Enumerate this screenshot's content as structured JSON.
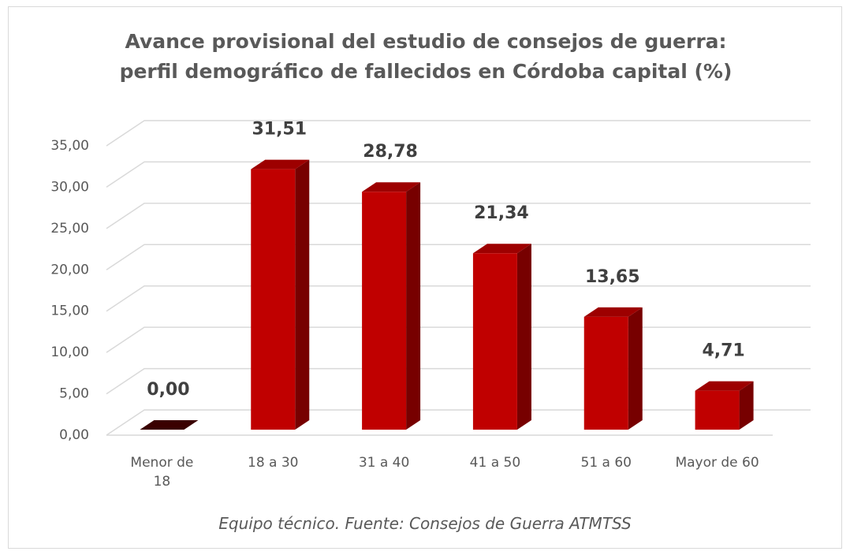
{
  "chart_data": {
    "type": "bar3d",
    "title": "Avance provisional del estudio de consejos de guerra: perfil demográfico de fallecidos en Córdoba capital (%)",
    "caption": "Equipo técnico. Fuente: Consejos de Guerra ATMTSS",
    "categories": [
      "Menor de 18",
      "18 a 30",
      "31 a 40",
      "41 a 50",
      "51 a 60",
      "Mayor de 60"
    ],
    "values": [
      0.0,
      31.51,
      28.78,
      21.34,
      13.65,
      4.71
    ],
    "value_labels": [
      "0,00",
      "31,51",
      "28,78",
      "21,34",
      "13,65",
      "4,71"
    ],
    "color": "#c00000",
    "ylim": [
      0,
      35
    ],
    "yticks": [
      {
        "value": 0,
        "label": "0,00"
      },
      {
        "value": 5,
        "label": "5,00"
      },
      {
        "value": 10,
        "label": "10,00"
      },
      {
        "value": 15,
        "label": "15,00"
      },
      {
        "value": 20,
        "label": "20,00"
      },
      {
        "value": 25,
        "label": "25,00"
      },
      {
        "value": 30,
        "label": "30,00"
      },
      {
        "value": 35,
        "label": "35,00"
      }
    ],
    "grid": true
  }
}
